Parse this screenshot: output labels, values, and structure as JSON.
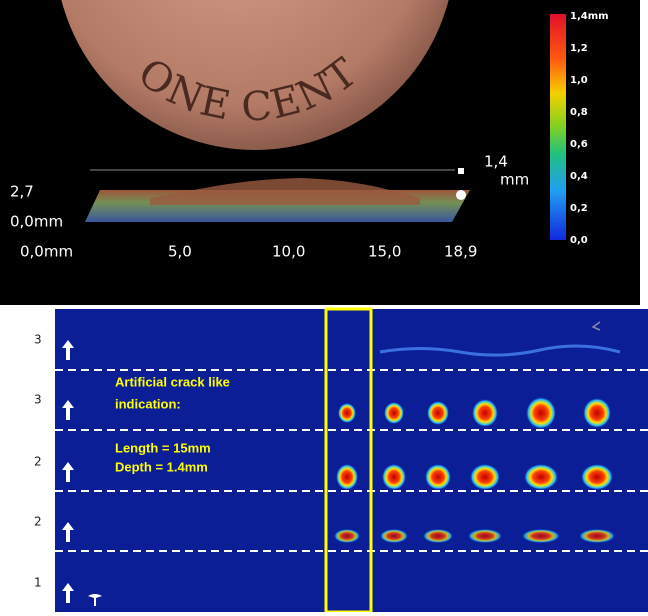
{
  "coin": {
    "text": "ONE CENT"
  },
  "profile": {
    "y_labels": [
      "2,7",
      "0,0mm"
    ],
    "x_labels": [
      "0,0mm",
      "5,0",
      "10,0",
      "15,0",
      "18,9"
    ],
    "z_label": [
      "1,4",
      "mm"
    ]
  },
  "colorbar": {
    "labels": [
      "1,4mm",
      "1,2",
      "1,0",
      "0,8",
      "0,6",
      "0,4",
      "0,2",
      "0,0"
    ]
  },
  "scan": {
    "row_labels": [
      "3",
      "3",
      "2",
      "2",
      "1"
    ],
    "annotation": [
      "Artificial crack like",
      "indication:"
    ],
    "details": [
      "Length = 15mm",
      "Depth = 1.4mm"
    ]
  }
}
